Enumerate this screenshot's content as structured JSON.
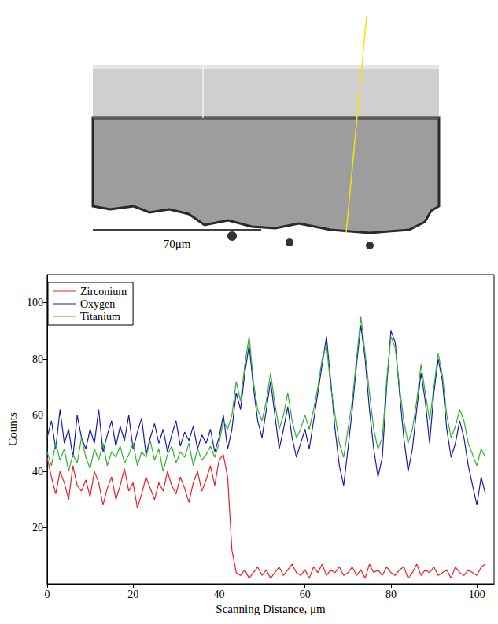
{
  "image": {
    "scale_bar": "70μm"
  },
  "chart_data": {
    "type": "line",
    "x_label": "Scanning Distance, μm",
    "y_label": "Counts",
    "xlim": [
      0,
      104
    ],
    "xticks": [
      0,
      20,
      40,
      60,
      80,
      100
    ],
    "ylim": [
      0,
      110
    ],
    "yticks": [
      20,
      40,
      60,
      80,
      100
    ],
    "grid": false,
    "legend": "upper left",
    "x": [
      0,
      1,
      2,
      3,
      4,
      5,
      6,
      7,
      8,
      9,
      10,
      11,
      12,
      13,
      14,
      15,
      16,
      17,
      18,
      19,
      20,
      21,
      22,
      23,
      24,
      25,
      26,
      27,
      28,
      29,
      30,
      31,
      32,
      33,
      34,
      35,
      36,
      37,
      38,
      39,
      40,
      41,
      42,
      43,
      44,
      45,
      46,
      47,
      48,
      49,
      50,
      51,
      52,
      53,
      54,
      55,
      56,
      57,
      58,
      59,
      60,
      61,
      62,
      63,
      64,
      65,
      66,
      67,
      68,
      69,
      70,
      71,
      72,
      73,
      74,
      75,
      76,
      77,
      78,
      79,
      80,
      81,
      82,
      83,
      84,
      85,
      86,
      87,
      88,
      89,
      90,
      91,
      92,
      93,
      94,
      95,
      96,
      97,
      98,
      99,
      100,
      101,
      102
    ],
    "series": [
      {
        "name": "Zirconium",
        "color": "#e8202a",
        "values": [
          45,
          38,
          32,
          40,
          36,
          30,
          42,
          35,
          33,
          37,
          31,
          40,
          36,
          28,
          34,
          38,
          30,
          35,
          41,
          33,
          36,
          27,
          32,
          38,
          34,
          30,
          36,
          33,
          40,
          35,
          32,
          38,
          34,
          29,
          36,
          40,
          33,
          37,
          42,
          35,
          44,
          46,
          38,
          12,
          4,
          3,
          5,
          2,
          4,
          6,
          3,
          5,
          2,
          4,
          6,
          3,
          5,
          7,
          4,
          3,
          5,
          2,
          6,
          4,
          7,
          3,
          5,
          4,
          6,
          3,
          4,
          6,
          3,
          5,
          2,
          7,
          4,
          5,
          3,
          6,
          4,
          3,
          5,
          6,
          2,
          4,
          7,
          3,
          5,
          4,
          6,
          3,
          4,
          5,
          2,
          6,
          4,
          3,
          5,
          4,
          3,
          6,
          7
        ]
      },
      {
        "name": "Oxygen",
        "color": "#1a1aa8",
        "values": [
          52,
          58,
          48,
          62,
          50,
          55,
          45,
          60,
          52,
          48,
          55,
          50,
          62,
          47,
          53,
          58,
          49,
          56,
          51,
          60,
          48,
          54,
          59,
          46,
          52,
          57,
          50,
          55,
          47,
          53,
          58,
          49,
          54,
          51,
          56,
          48,
          53,
          50,
          55,
          47,
          52,
          60,
          48,
          55,
          68,
          62,
          75,
          85,
          70,
          58,
          52,
          62,
          72,
          60,
          48,
          55,
          63,
          52,
          45,
          50,
          55,
          48,
          58,
          68,
          78,
          88,
          72,
          55,
          42,
          35,
          48,
          62,
          78,
          92,
          80,
          62,
          48,
          38,
          45,
          70,
          90,
          86,
          68,
          52,
          40,
          48,
          62,
          75,
          65,
          50,
          68,
          80,
          72,
          55,
          45,
          50,
          58,
          52,
          42,
          35,
          28,
          38,
          32
        ]
      },
      {
        "name": "Titanium",
        "color": "#30b030",
        "values": [
          47,
          42,
          50,
          44,
          48,
          40,
          46,
          43,
          52,
          45,
          41,
          48,
          44,
          50,
          42,
          47,
          45,
          49,
          43,
          46,
          50,
          42,
          47,
          45,
          51,
          44,
          48,
          40,
          46,
          49,
          43,
          47,
          45,
          50,
          42,
          48,
          44,
          46,
          49,
          45,
          50,
          58,
          55,
          60,
          72,
          65,
          78,
          88,
          72,
          62,
          58,
          65,
          75,
          64,
          55,
          60,
          68,
          58,
          52,
          55,
          60,
          55,
          62,
          70,
          80,
          85,
          70,
          60,
          50,
          45,
          55,
          65,
          80,
          95,
          82,
          68,
          55,
          48,
          52,
          72,
          88,
          84,
          70,
          58,
          50,
          55,
          65,
          78,
          68,
          58,
          70,
          82,
          74,
          60,
          52,
          56,
          62,
          58,
          50,
          46,
          42,
          48,
          45
        ]
      }
    ]
  }
}
